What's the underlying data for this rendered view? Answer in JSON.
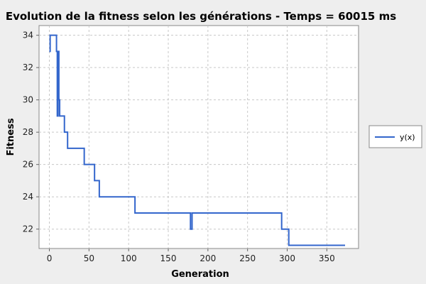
{
  "chart_data": {
    "type": "line",
    "title": "Evolution de la fitness selon les générations - Temps = 60015 ms",
    "xlabel": "Generation",
    "ylabel": "Fitness",
    "xlim": [
      -13,
      390
    ],
    "ylim": [
      20.8,
      34.6
    ],
    "xticks": [
      0,
      50,
      100,
      150,
      200,
      250,
      300,
      350
    ],
    "yticks": [
      22,
      24,
      26,
      28,
      30,
      32,
      34
    ],
    "grid": true,
    "legend_position": "right",
    "series_color": "#3366cc",
    "series": [
      {
        "name": "y(x)",
        "step": true,
        "x": [
          0,
          1,
          9,
          10,
          11,
          12,
          13,
          19,
          21,
          23,
          44,
          57,
          60,
          63,
          108,
          178,
          179,
          180,
          293,
          300,
          302,
          373
        ],
        "y": [
          33,
          34,
          33,
          29,
          33,
          30,
          29,
          28,
          28,
          27,
          26,
          25,
          25,
          24,
          23,
          22,
          22,
          23,
          22,
          22,
          21,
          21
        ]
      }
    ]
  }
}
